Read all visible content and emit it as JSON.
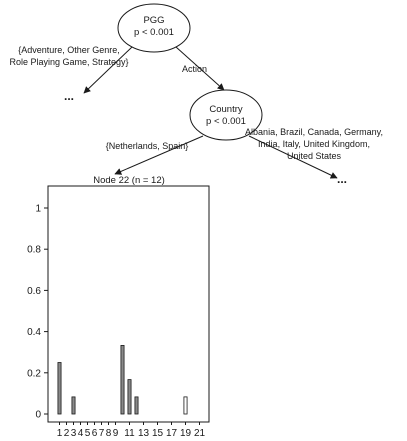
{
  "root_node": {
    "variable": "PGG",
    "pvalue": "p < 0.001"
  },
  "root_edges": {
    "left_label_lines": [
      "{Adventure, Other Genre,",
      "Role Playing Game, Strategy}"
    ],
    "right_label": "Action"
  },
  "left_truncated": "...",
  "child_node": {
    "variable": "Country",
    "pvalue": "p < 0.001"
  },
  "child_edges": {
    "left_label": "{Netherlands, Spain}",
    "right_label_lines": [
      "Albania, Brazil, Canada, Germany,",
      "India, Italy, United Kingdom,",
      "United States"
    ]
  },
  "right_truncated": "...",
  "terminal_node": {
    "title": "Node 22 (n = 12)"
  },
  "chart_data": {
    "type": "bar",
    "title": "Node 22 (n = 12)",
    "categories": [
      "1",
      "2",
      "3",
      "4",
      "5",
      "6",
      "7",
      "8",
      "9",
      "10",
      "11",
      "12",
      "13",
      "14",
      "15",
      "16",
      "17",
      "18",
      "19",
      "20",
      "21"
    ],
    "values": [
      0.25,
      0,
      0.083,
      0,
      0,
      0,
      0,
      0,
      0,
      0.333,
      0.167,
      0.083,
      0,
      0,
      0,
      0,
      0,
      0,
      0.083,
      0,
      0
    ],
    "white_bars": [
      "19"
    ],
    "ylim": [
      0,
      1
    ],
    "yticks": [
      "0",
      "0.2",
      "0.4",
      "0.6",
      "0.8",
      "1"
    ],
    "xtick_labels": [
      "1",
      "2",
      "3",
      "4",
      "5",
      "6",
      "7",
      "8",
      "9",
      "11",
      "13",
      "15",
      "17",
      "19",
      "21"
    ]
  }
}
